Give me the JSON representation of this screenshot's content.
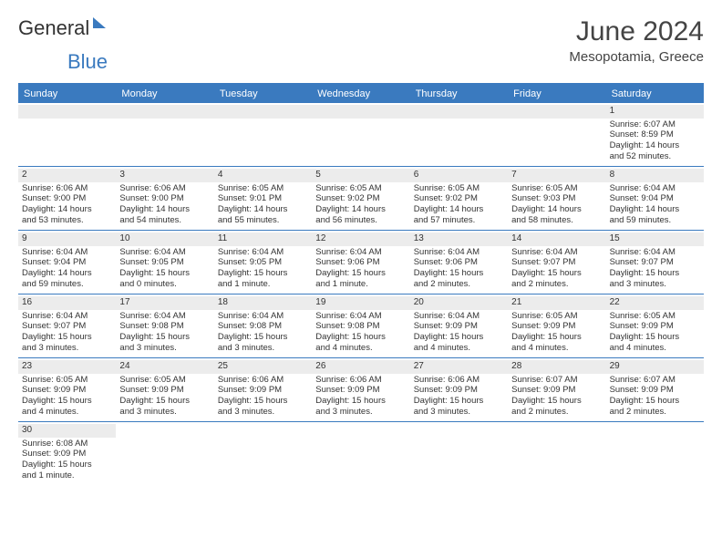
{
  "brand": {
    "part1": "General",
    "part2": "Blue"
  },
  "title": "June 2024",
  "location": "Mesopotamia, Greece",
  "colors": {
    "accent": "#3a7abf",
    "header_bg": "#3a7abf",
    "date_bg": "#ececec",
    "text": "#333333",
    "background": "#ffffff"
  },
  "daynames": [
    "Sunday",
    "Monday",
    "Tuesday",
    "Wednesday",
    "Thursday",
    "Friday",
    "Saturday"
  ],
  "weeks": [
    [
      null,
      null,
      null,
      null,
      null,
      null,
      {
        "date": "1",
        "sunrise": "Sunrise: 6:07 AM",
        "sunset": "Sunset: 8:59 PM",
        "daylight1": "Daylight: 14 hours",
        "daylight2": "and 52 minutes."
      }
    ],
    [
      {
        "date": "2",
        "sunrise": "Sunrise: 6:06 AM",
        "sunset": "Sunset: 9:00 PM",
        "daylight1": "Daylight: 14 hours",
        "daylight2": "and 53 minutes."
      },
      {
        "date": "3",
        "sunrise": "Sunrise: 6:06 AM",
        "sunset": "Sunset: 9:00 PM",
        "daylight1": "Daylight: 14 hours",
        "daylight2": "and 54 minutes."
      },
      {
        "date": "4",
        "sunrise": "Sunrise: 6:05 AM",
        "sunset": "Sunset: 9:01 PM",
        "daylight1": "Daylight: 14 hours",
        "daylight2": "and 55 minutes."
      },
      {
        "date": "5",
        "sunrise": "Sunrise: 6:05 AM",
        "sunset": "Sunset: 9:02 PM",
        "daylight1": "Daylight: 14 hours",
        "daylight2": "and 56 minutes."
      },
      {
        "date": "6",
        "sunrise": "Sunrise: 6:05 AM",
        "sunset": "Sunset: 9:02 PM",
        "daylight1": "Daylight: 14 hours",
        "daylight2": "and 57 minutes."
      },
      {
        "date": "7",
        "sunrise": "Sunrise: 6:05 AM",
        "sunset": "Sunset: 9:03 PM",
        "daylight1": "Daylight: 14 hours",
        "daylight2": "and 58 minutes."
      },
      {
        "date": "8",
        "sunrise": "Sunrise: 6:04 AM",
        "sunset": "Sunset: 9:04 PM",
        "daylight1": "Daylight: 14 hours",
        "daylight2": "and 59 minutes."
      }
    ],
    [
      {
        "date": "9",
        "sunrise": "Sunrise: 6:04 AM",
        "sunset": "Sunset: 9:04 PM",
        "daylight1": "Daylight: 14 hours",
        "daylight2": "and 59 minutes."
      },
      {
        "date": "10",
        "sunrise": "Sunrise: 6:04 AM",
        "sunset": "Sunset: 9:05 PM",
        "daylight1": "Daylight: 15 hours",
        "daylight2": "and 0 minutes."
      },
      {
        "date": "11",
        "sunrise": "Sunrise: 6:04 AM",
        "sunset": "Sunset: 9:05 PM",
        "daylight1": "Daylight: 15 hours",
        "daylight2": "and 1 minute."
      },
      {
        "date": "12",
        "sunrise": "Sunrise: 6:04 AM",
        "sunset": "Sunset: 9:06 PM",
        "daylight1": "Daylight: 15 hours",
        "daylight2": "and 1 minute."
      },
      {
        "date": "13",
        "sunrise": "Sunrise: 6:04 AM",
        "sunset": "Sunset: 9:06 PM",
        "daylight1": "Daylight: 15 hours",
        "daylight2": "and 2 minutes."
      },
      {
        "date": "14",
        "sunrise": "Sunrise: 6:04 AM",
        "sunset": "Sunset: 9:07 PM",
        "daylight1": "Daylight: 15 hours",
        "daylight2": "and 2 minutes."
      },
      {
        "date": "15",
        "sunrise": "Sunrise: 6:04 AM",
        "sunset": "Sunset: 9:07 PM",
        "daylight1": "Daylight: 15 hours",
        "daylight2": "and 3 minutes."
      }
    ],
    [
      {
        "date": "16",
        "sunrise": "Sunrise: 6:04 AM",
        "sunset": "Sunset: 9:07 PM",
        "daylight1": "Daylight: 15 hours",
        "daylight2": "and 3 minutes."
      },
      {
        "date": "17",
        "sunrise": "Sunrise: 6:04 AM",
        "sunset": "Sunset: 9:08 PM",
        "daylight1": "Daylight: 15 hours",
        "daylight2": "and 3 minutes."
      },
      {
        "date": "18",
        "sunrise": "Sunrise: 6:04 AM",
        "sunset": "Sunset: 9:08 PM",
        "daylight1": "Daylight: 15 hours",
        "daylight2": "and 3 minutes."
      },
      {
        "date": "19",
        "sunrise": "Sunrise: 6:04 AM",
        "sunset": "Sunset: 9:08 PM",
        "daylight1": "Daylight: 15 hours",
        "daylight2": "and 4 minutes."
      },
      {
        "date": "20",
        "sunrise": "Sunrise: 6:04 AM",
        "sunset": "Sunset: 9:09 PM",
        "daylight1": "Daylight: 15 hours",
        "daylight2": "and 4 minutes."
      },
      {
        "date": "21",
        "sunrise": "Sunrise: 6:05 AM",
        "sunset": "Sunset: 9:09 PM",
        "daylight1": "Daylight: 15 hours",
        "daylight2": "and 4 minutes."
      },
      {
        "date": "22",
        "sunrise": "Sunrise: 6:05 AM",
        "sunset": "Sunset: 9:09 PM",
        "daylight1": "Daylight: 15 hours",
        "daylight2": "and 4 minutes."
      }
    ],
    [
      {
        "date": "23",
        "sunrise": "Sunrise: 6:05 AM",
        "sunset": "Sunset: 9:09 PM",
        "daylight1": "Daylight: 15 hours",
        "daylight2": "and 4 minutes."
      },
      {
        "date": "24",
        "sunrise": "Sunrise: 6:05 AM",
        "sunset": "Sunset: 9:09 PM",
        "daylight1": "Daylight: 15 hours",
        "daylight2": "and 3 minutes."
      },
      {
        "date": "25",
        "sunrise": "Sunrise: 6:06 AM",
        "sunset": "Sunset: 9:09 PM",
        "daylight1": "Daylight: 15 hours",
        "daylight2": "and 3 minutes."
      },
      {
        "date": "26",
        "sunrise": "Sunrise: 6:06 AM",
        "sunset": "Sunset: 9:09 PM",
        "daylight1": "Daylight: 15 hours",
        "daylight2": "and 3 minutes."
      },
      {
        "date": "27",
        "sunrise": "Sunrise: 6:06 AM",
        "sunset": "Sunset: 9:09 PM",
        "daylight1": "Daylight: 15 hours",
        "daylight2": "and 3 minutes."
      },
      {
        "date": "28",
        "sunrise": "Sunrise: 6:07 AM",
        "sunset": "Sunset: 9:09 PM",
        "daylight1": "Daylight: 15 hours",
        "daylight2": "and 2 minutes."
      },
      {
        "date": "29",
        "sunrise": "Sunrise: 6:07 AM",
        "sunset": "Sunset: 9:09 PM",
        "daylight1": "Daylight: 15 hours",
        "daylight2": "and 2 minutes."
      }
    ],
    [
      {
        "date": "30",
        "sunrise": "Sunrise: 6:08 AM",
        "sunset": "Sunset: 9:09 PM",
        "daylight1": "Daylight: 15 hours",
        "daylight2": "and 1 minute."
      },
      null,
      null,
      null,
      null,
      null,
      null
    ]
  ]
}
